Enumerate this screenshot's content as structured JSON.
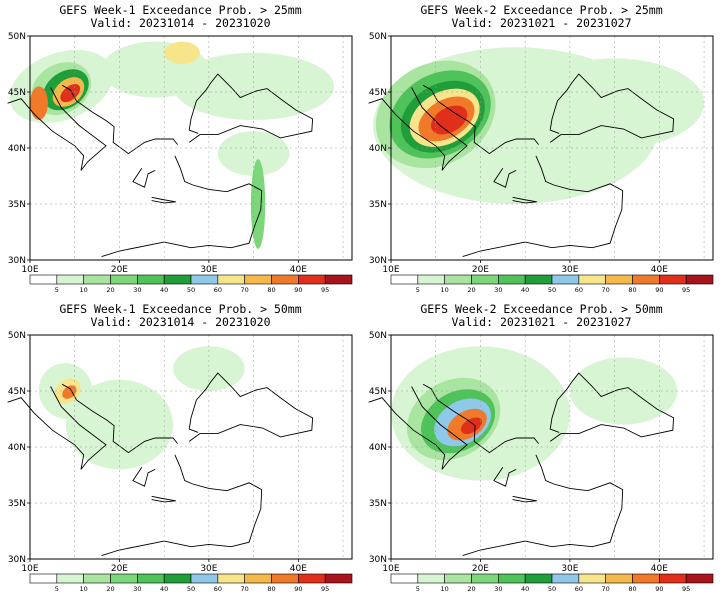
{
  "panels": [
    {
      "title1": "GEFS Week-1 Exceedance Prob. > 25mm",
      "title2": "Valid: 20231014 - 20231020"
    },
    {
      "title1": "GEFS Week-2 Exceedance Prob. > 25mm",
      "title2": "Valid: 20231021 - 20231027"
    },
    {
      "title1": "GEFS Week-1 Exceedance Prob. > 50mm",
      "title2": "Valid: 20231014 - 20231020"
    },
    {
      "title1": "GEFS Week-2 Exceedance Prob. > 50mm",
      "title2": "Valid: 20231021 - 20231027"
    }
  ],
  "axes": {
    "lat_labels": [
      "50N",
      "45N",
      "40N",
      "35N",
      "30N"
    ],
    "lon_labels": [
      "10E",
      "20E",
      "30E",
      "40E"
    ]
  },
  "colorbar": {
    "labels": [
      "5",
      "10",
      "20",
      "30",
      "40",
      "50",
      "60",
      "70",
      "80",
      "90",
      "95"
    ],
    "colors": [
      "#ffffff",
      "#d8f5d3",
      "#a9e5a0",
      "#7cd67a",
      "#4fc25a",
      "#1f9e3a",
      "#8fc8e8",
      "#f7e58c",
      "#f5b84a",
      "#f07a2a",
      "#e0301c",
      "#a8141c"
    ]
  }
}
